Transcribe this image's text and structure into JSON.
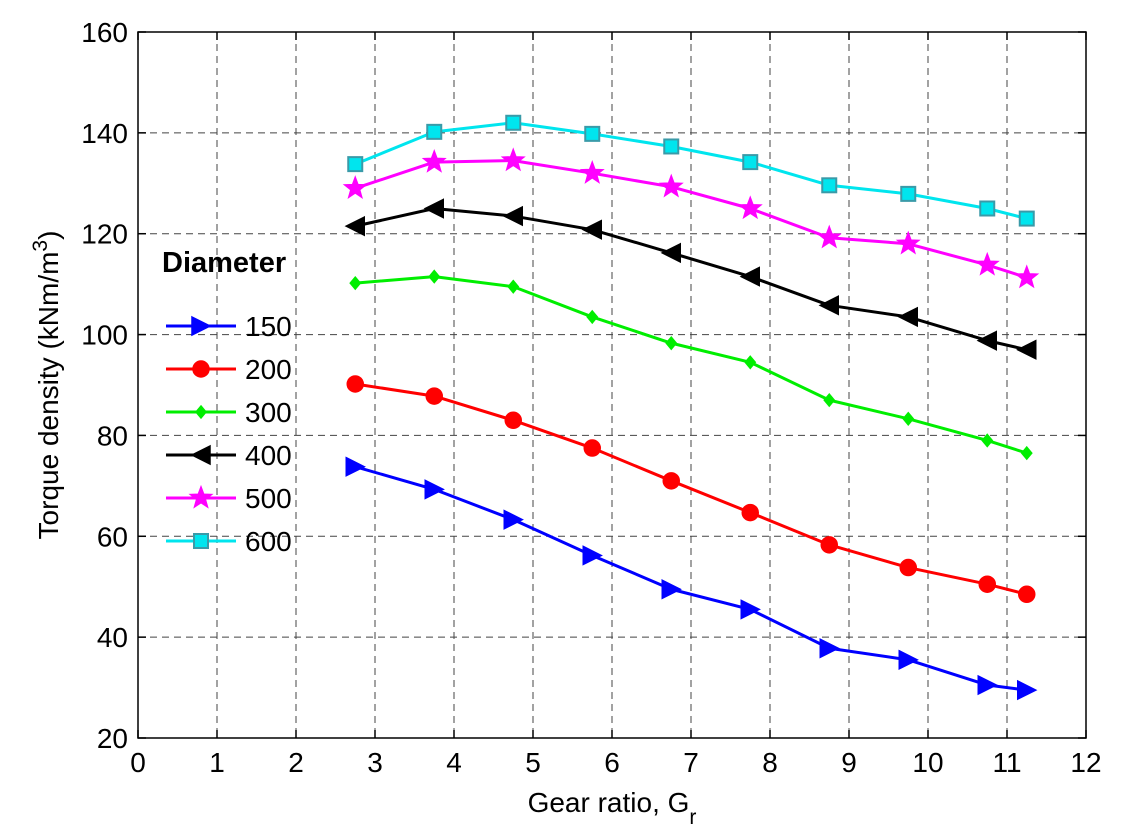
{
  "chart_data": {
    "type": "line",
    "xlabel": "Gear ratio, G",
    "xlabel_sub": "r",
    "ylabel": "Torque density (kNm/m",
    "ylabel_sup": "3",
    "ylabel_close": ")",
    "xlim": [
      0,
      12
    ],
    "ylim": [
      20,
      160
    ],
    "xticks": [
      0,
      1,
      2,
      3,
      4,
      5,
      6,
      7,
      8,
      9,
      10,
      11,
      12
    ],
    "yticks": [
      20,
      40,
      60,
      80,
      100,
      120,
      140,
      160
    ],
    "grid": true,
    "legend_title": "Diameter",
    "legend_position": "left",
    "x": [
      2.75,
      3.75,
      4.75,
      5.75,
      6.75,
      7.75,
      8.75,
      9.75,
      10.75,
      11.25
    ],
    "series": [
      {
        "name": "150",
        "color": "#0000ff",
        "marker": "triangle-right",
        "values": [
          73.8,
          69.3,
          63.3,
          56.2,
          49.5,
          45.5,
          37.8,
          35.5,
          30.5,
          29.5
        ]
      },
      {
        "name": "200",
        "color": "#ff0000",
        "marker": "circle",
        "values": [
          90.2,
          87.8,
          83.0,
          77.5,
          71.0,
          64.7,
          58.3,
          53.8,
          50.5,
          48.5
        ]
      },
      {
        "name": "300",
        "color": "#00ee00",
        "marker": "diamond",
        "values": [
          110.2,
          111.5,
          109.5,
          103.5,
          98.3,
          94.5,
          87.0,
          83.3,
          79.0,
          76.5
        ]
      },
      {
        "name": "400",
        "color": "#000000",
        "marker": "triangle-left",
        "values": [
          121.5,
          125.0,
          123.5,
          120.8,
          116.2,
          111.5,
          105.8,
          103.5,
          98.8,
          97.0
        ]
      },
      {
        "name": "500",
        "color": "#ff00ff",
        "marker": "star",
        "values": [
          129.0,
          134.2,
          134.5,
          132.0,
          129.3,
          125.0,
          119.2,
          118.0,
          113.8,
          111.3
        ]
      },
      {
        "name": "600",
        "color": "#00e5ee",
        "marker": "square",
        "values": [
          133.8,
          140.2,
          142.0,
          139.8,
          137.3,
          134.2,
          129.6,
          127.9,
          125.0,
          123.0
        ]
      }
    ]
  }
}
